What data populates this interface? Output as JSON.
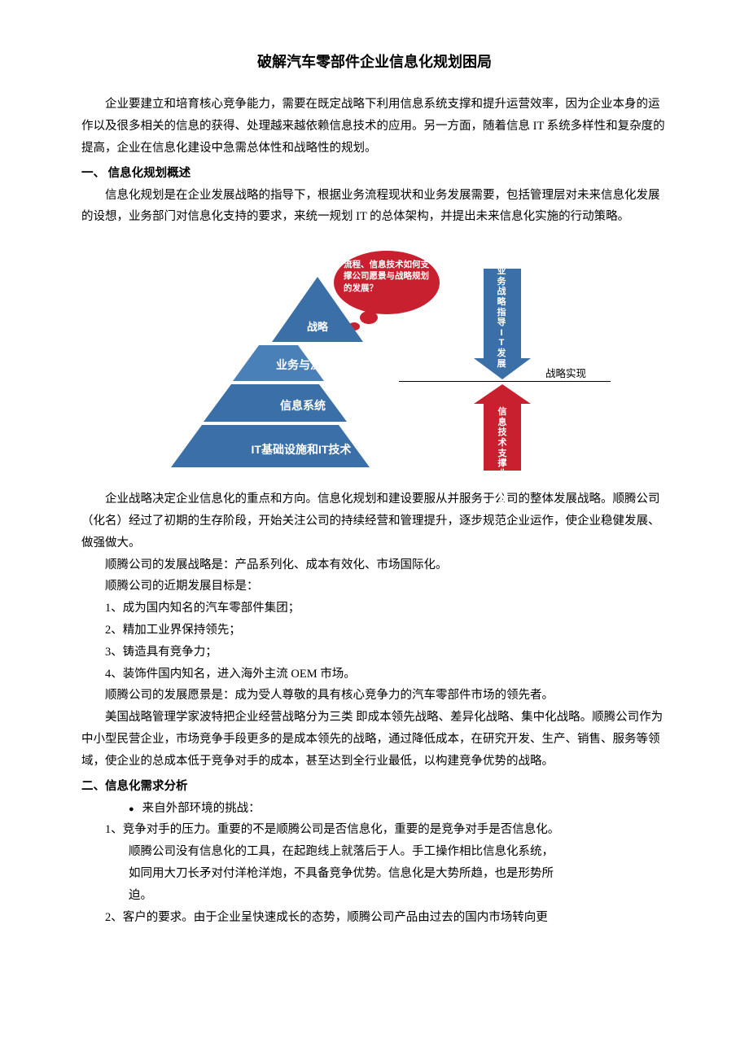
{
  "title": "破解汽车零部件企业信息化规划困局",
  "intro": "企业要建立和培育核心竞争能力，需要在既定战略下利用信息系统支撑和提升运营效率，因为企业本身的运作以及很多相关的信息的获得、处理越来越依赖信息技术的应用。另一方面，随着信息 IT 系统多样性和复杂度的提高，企业在信息化建设中急需总体性和战略性的规划。",
  "h1": "一、 信息化规划概述",
  "p1": "信息化规划是在企业发展战略的指导下，根据业务流程现状和业务发展需要，包括管理层对未来信息化发展的设想，业务部门对信息化支持的要求，来统一规划 IT 的总体架构，并提出未来信息化实施的行动策略。",
  "diagram": {
    "type": "infographic",
    "pyramid": {
      "layers": [
        {
          "label": "战略",
          "color": "#3a6fa8"
        },
        {
          "label": "业务与流程",
          "color": "#4a80b8"
        },
        {
          "label": "信息系统",
          "color": "#3a6fa8"
        },
        {
          "label": "IT基础设施和IT技术",
          "color": "#3a6fa8"
        }
      ],
      "border_color": "#ffffff"
    },
    "cloud": {
      "text": "流程、信息技术如何支撑公司愿景与战略规划的发展？",
      "fill": "#c8202f"
    },
    "arrow_down": {
      "label": "业务战略指导IT发展",
      "fill": "#3a6fa8"
    },
    "arrow_up": {
      "label": "信息技术支撑业务战略",
      "fill": "#c8202f"
    },
    "hline_label": "战略实现",
    "background": "#ffffff"
  },
  "p2": "企业战略决定企业信息化的重点和方向。信息化规划和建设要服从并服务于公司的整体发展战略。顺腾公司（化名）经过了初期的生存阶段，开始关注公司的持续经营和管理提升，逐步规范企业运作，使企业稳健发展、做强做大。",
  "p3": "顺腾公司的发展战略是：产品系列化、成本有效化、市场国际化。",
  "p4": "顺腾公司的近期发展目标是：",
  "goals": [
    "1、成为国内知名的汽车零部件集团；",
    "2、精加工业界保持领先；",
    "3、铸造具有竞争力；",
    "4、装饰件国内知名，进入海外主流 OEM 市场。"
  ],
  "p5": "顺腾公司的发展愿景是：成为受人尊敬的具有核心竞争力的汽车零部件市场的领先者。",
  "p6": "美国战略管理学家波特把企业经营战略分为三类 即成本领先战略、差异化战略、集中化战略。顺腾公司作为中小型民营企业，市场竞争手段更多的是成本领先的战略，通过降低成本，在研究开发、生产、销售、服务等领域，使企业的总成本低于竞争对手的成本，甚至达到全行业最低，以构建竞争优势的战略。",
  "h2": "二、信息化需求分析",
  "bullet1": "来自外部环境的挑战：",
  "ext": [
    {
      "lead": "1、竞争对手的压力。重要的不是顺腾公司是否信息化，重要的是竞争对手是否信息化。",
      "cont": [
        "顺腾公司没有信息化的工具，在起跑线上就落后于人。手工操作相比信息化系统，",
        "如同用大刀长矛对付洋枪洋炮，不具备竞争优势。信息化是大势所趋，也是形势所",
        "迫。"
      ]
    },
    {
      "lead": "2、客户的要求。由于企业呈快速成长的态势，顺腾公司产品由过去的国内市场转向更",
      "cont": []
    }
  ]
}
